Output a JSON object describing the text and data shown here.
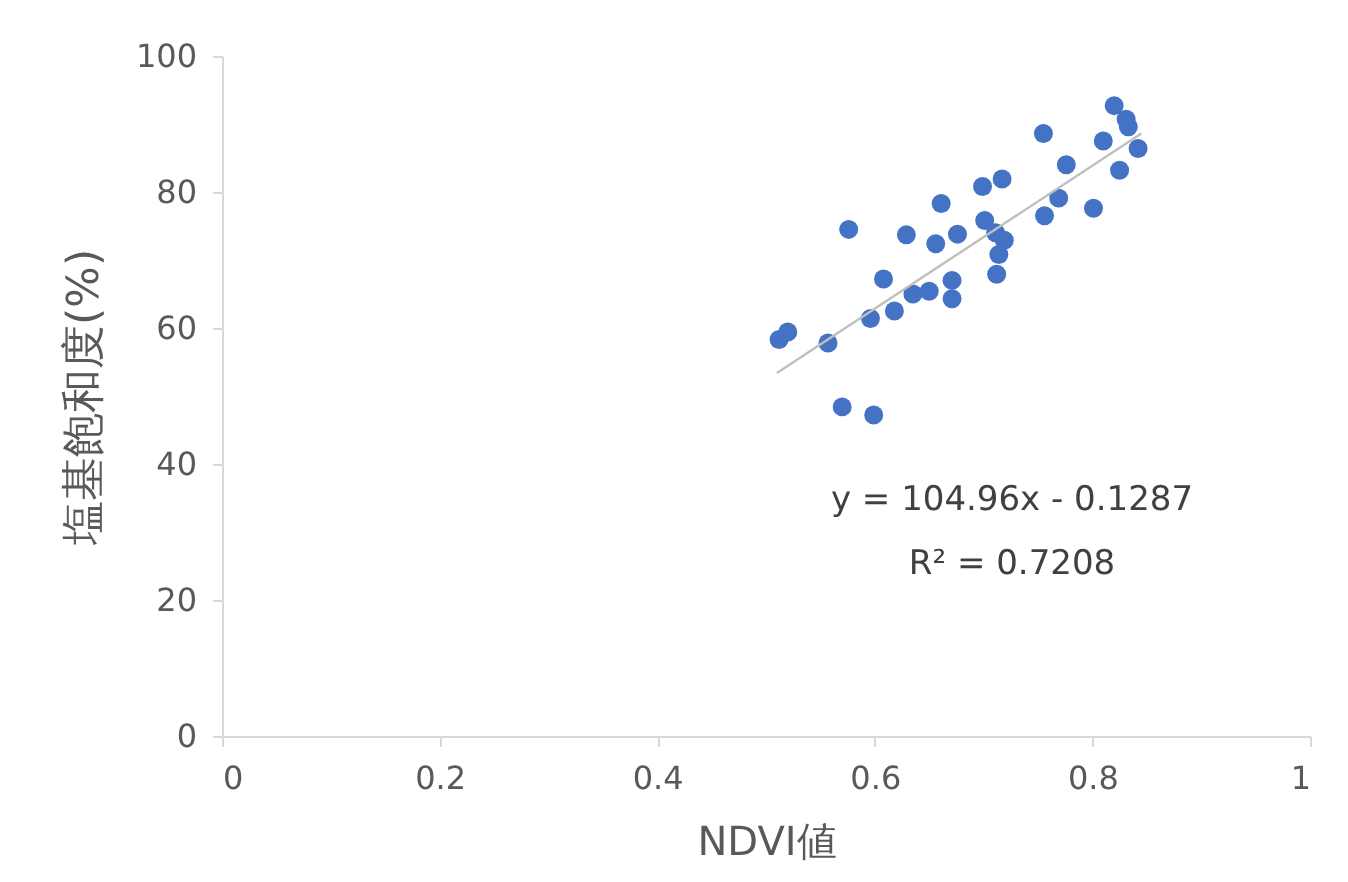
{
  "chart_data": {
    "type": "scatter",
    "xlabel": "NDVI値",
    "ylabel": "塩基飽和度(%)",
    "xlim": [
      0,
      1
    ],
    "xticks": [
      0,
      0.2,
      0.4,
      0.6,
      0.8,
      1
    ],
    "ylim": [
      0,
      100
    ],
    "yticks": [
      0,
      20,
      40,
      60,
      80,
      100
    ],
    "grid": false,
    "annotations": [
      "y = 104.96x - 0.1287",
      "R² = 0.7208"
    ],
    "series": [
      {
        "marker": "circle",
        "color": "#4472c4",
        "x": [
          0.512,
          0.52,
          0.557,
          0.576,
          0.57,
          0.599,
          0.596,
          0.608,
          0.618,
          0.629,
          0.635,
          0.65,
          0.656,
          0.661,
          0.671,
          0.671,
          0.676,
          0.699,
          0.717,
          0.701,
          0.711,
          0.719,
          0.714,
          0.712,
          0.756,
          0.769,
          0.755,
          0.776,
          0.801,
          0.81,
          0.82,
          0.831,
          0.833,
          0.842,
          0.825
        ],
        "values": [
          58.3,
          59.4,
          57.8,
          74.5,
          48.4,
          47.2,
          61.4,
          67.2,
          62.5,
          73.7,
          65.0,
          65.4,
          72.4,
          78.3,
          67.0,
          64.3,
          73.8,
          80.8,
          81.9,
          75.8,
          74.0,
          72.9,
          70.8,
          67.9,
          76.5,
          79.1,
          88.6,
          84.0,
          77.6,
          87.5,
          92.7,
          90.7,
          89.6,
          86.4,
          83.2
        ]
      },
      {
        "type": "line",
        "marker": "none",
        "color": "#bfbfbf",
        "x": [
          0.51,
          0.845
        ],
        "values": [
          53.4,
          88.6
        ]
      }
    ]
  }
}
